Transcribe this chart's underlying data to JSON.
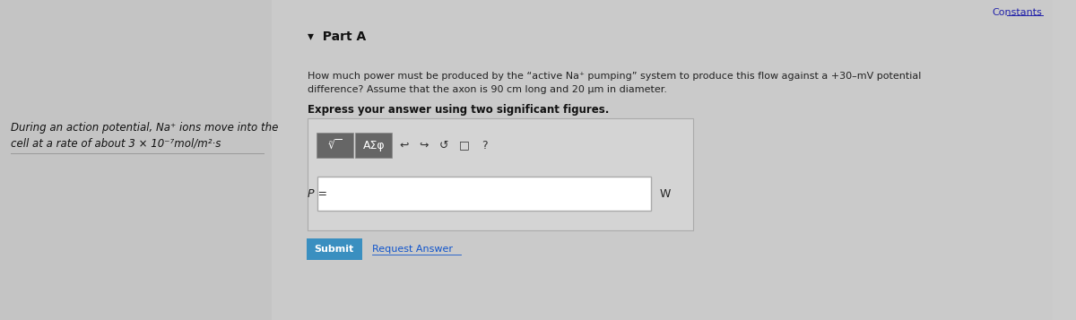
{
  "bg_color": "#cccccc",
  "title_text": "Constants",
  "part_a_label": "▾  Part A",
  "left_text_line1": "During an action potential, Na⁺ ions move into the",
  "left_text_line2": "cell at a rate of about 3 × 10⁻⁷mol/m²·s",
  "question_line1": "How much power must be produced by the “active Na⁺ pumping” system to produce this flow against a +30–mV potential",
  "question_line2": "difference? Assume that the axon is 90 cm long and 20 μm in diameter.",
  "express_text": "Express your answer using two significant figures.",
  "p_label": "P =",
  "w_label": "W",
  "submit_text": "Submit",
  "request_text": "Request Answer",
  "input_box_color": "#ffffff",
  "submit_btn_color": "#3a8fc0",
  "constants_link_color": "#2222aa",
  "toolbar_btn_color": "#666666",
  "panel_bg": "#c8c8c8",
  "text_dark": "#111111",
  "text_mid": "#222222"
}
